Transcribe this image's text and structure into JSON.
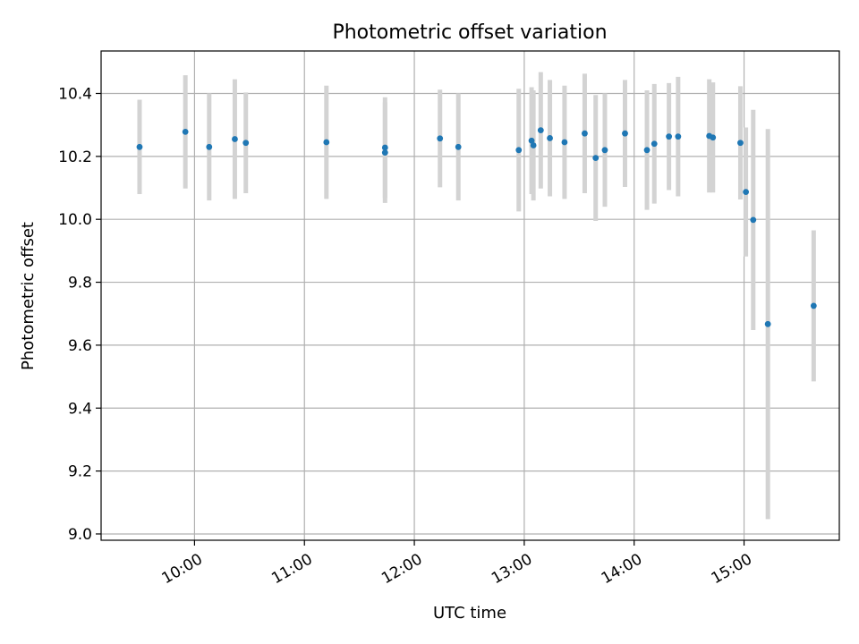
{
  "chart_data": {
    "type": "scatter",
    "title": "Photometric offset variation",
    "xlabel": "UTC time",
    "ylabel": "Photometric offset",
    "x_unit": "hours UTC",
    "xlim": [
      "09:09",
      "15:52"
    ],
    "ylim": [
      8.98,
      10.535
    ],
    "x_ticks": [
      "10:00",
      "11:00",
      "12:00",
      "13:00",
      "14:00",
      "15:00"
    ],
    "y_ticks": [
      "9.0",
      "9.2",
      "9.4",
      "9.6",
      "9.8",
      "10.0",
      "10.2",
      "10.4"
    ],
    "grid": true,
    "colors": {
      "points": "#1f77b4",
      "errorbars": "#d3d3d3",
      "grid": "#b0b0b0"
    },
    "series": [
      {
        "points": [
          {
            "time": "09:30",
            "y": 10.23,
            "yerr": 0.15
          },
          {
            "time": "09:55",
            "y": 10.278,
            "yerr": 0.18
          },
          {
            "time": "10:08",
            "y": 10.23,
            "yerr": 0.17
          },
          {
            "time": "10:22",
            "y": 10.255,
            "yerr": 0.19
          },
          {
            "time": "10:28",
            "y": 10.243,
            "yerr": 0.16
          },
          {
            "time": "11:12",
            "y": 10.245,
            "yerr": 0.18
          },
          {
            "time": "11:44",
            "y": 10.228,
            "yerr": 0.16
          },
          {
            "time": "11:44",
            "y": 10.212,
            "yerr": 0.16
          },
          {
            "time": "12:14",
            "y": 10.257,
            "yerr": 0.155
          },
          {
            "time": "12:24",
            "y": 10.23,
            "yerr": 0.17
          },
          {
            "time": "12:57",
            "y": 10.22,
            "yerr": 0.195
          },
          {
            "time": "13:04",
            "y": 10.25,
            "yerr": 0.17
          },
          {
            "time": "13:05",
            "y": 10.235,
            "yerr": 0.175
          },
          {
            "time": "13:09",
            "y": 10.283,
            "yerr": 0.185
          },
          {
            "time": "13:14",
            "y": 10.258,
            "yerr": 0.185
          },
          {
            "time": "13:22",
            "y": 10.245,
            "yerr": 0.18
          },
          {
            "time": "13:33",
            "y": 10.273,
            "yerr": 0.19
          },
          {
            "time": "13:39",
            "y": 10.195,
            "yerr": 0.2
          },
          {
            "time": "13:44",
            "y": 10.22,
            "yerr": 0.18
          },
          {
            "time": "13:55",
            "y": 10.273,
            "yerr": 0.17
          },
          {
            "time": "14:07",
            "y": 10.22,
            "yerr": 0.19
          },
          {
            "time": "14:11",
            "y": 10.24,
            "yerr": 0.19
          },
          {
            "time": "14:19",
            "y": 10.263,
            "yerr": 0.17
          },
          {
            "time": "14:24",
            "y": 10.263,
            "yerr": 0.19
          },
          {
            "time": "14:41",
            "y": 10.265,
            "yerr": 0.18
          },
          {
            "time": "14:43",
            "y": 10.26,
            "yerr": 0.175
          },
          {
            "time": "14:58",
            "y": 10.243,
            "yerr": 0.18
          },
          {
            "time": "15:01",
            "y": 10.087,
            "yerr": 0.205
          },
          {
            "time": "15:05",
            "y": 9.998,
            "yerr": 0.35
          },
          {
            "time": "15:13",
            "y": 9.667,
            "yerr": 0.62
          },
          {
            "time": "15:38",
            "y": 9.725,
            "yerr": 0.24
          }
        ]
      }
    ]
  }
}
